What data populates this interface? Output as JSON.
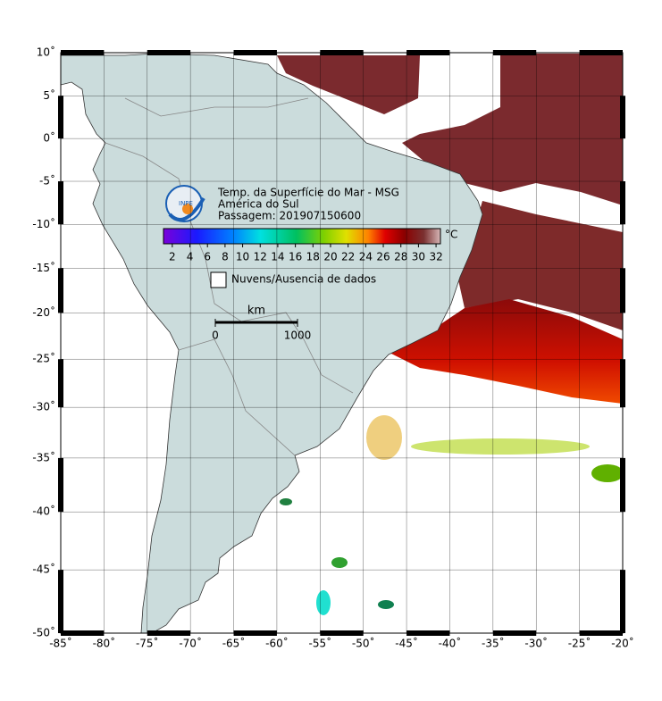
{
  "map": {
    "lonlim": [
      -85,
      -20
    ],
    "latlim": [
      -50,
      10
    ],
    "lon_ticks": [
      {
        "value": -85,
        "label": "-85˚"
      },
      {
        "value": -80,
        "label": "-80˚"
      },
      {
        "value": -75,
        "label": "-75˚"
      },
      {
        "value": -70,
        "label": "-70˚"
      },
      {
        "value": -65,
        "label": "-65˚"
      },
      {
        "value": -60,
        "label": "-60˚"
      },
      {
        "value": -55,
        "label": "-55˚"
      },
      {
        "value": -50,
        "label": "-50˚"
      },
      {
        "value": -45,
        "label": "-45˚"
      },
      {
        "value": -40,
        "label": "-40˚"
      },
      {
        "value": -35,
        "label": "-35˚"
      },
      {
        "value": -30,
        "label": "-30˚"
      },
      {
        "value": -25,
        "label": "-25˚"
      },
      {
        "value": -20,
        "label": "-20˚"
      }
    ],
    "lat_ticks": [
      {
        "value": 10,
        "label": "10˚"
      },
      {
        "value": 5,
        "label": "5˚"
      },
      {
        "value": 0,
        "label": "0˚"
      },
      {
        "value": -5,
        "label": "-5˚"
      },
      {
        "value": -10,
        "label": "-10˚"
      },
      {
        "value": -15,
        "label": "-15˚"
      },
      {
        "value": -20,
        "label": "-20˚"
      },
      {
        "value": -25,
        "label": "-25˚"
      },
      {
        "value": -30,
        "label": "-30˚"
      },
      {
        "value": -35,
        "label": "-35˚"
      },
      {
        "value": -40,
        "label": "-40˚"
      },
      {
        "value": -45,
        "label": "-45˚"
      },
      {
        "value": -50,
        "label": "-50˚"
      }
    ]
  },
  "logo": "INPE",
  "title": [
    "Temp. da Superfície do Mar - MSG",
    "América do Sul",
    "Passagem: 201907150600"
  ],
  "colorbar": {
    "unit": "°C",
    "lim": [
      1,
      32.5
    ],
    "ticks": [
      2,
      4,
      6,
      8,
      10,
      12,
      14,
      16,
      18,
      20,
      22,
      24,
      26,
      28,
      30,
      32
    ]
  },
  "legend": "Nuvens/Ausencia de dados",
  "scale": {
    "unit": "km",
    "ticks": [
      0,
      1000
    ]
  }
}
